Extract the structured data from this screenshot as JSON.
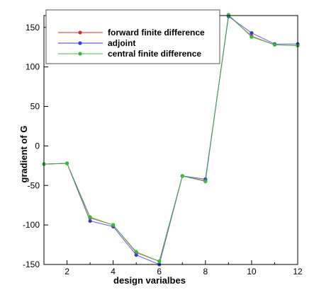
{
  "chart_data": {
    "type": "line",
    "title": "",
    "xlabel": "design varialbes",
    "ylabel": "gradient of G",
    "xlim": [
      1,
      12
    ],
    "ylim": [
      -150,
      165
    ],
    "xticks": [
      2,
      4,
      6,
      8,
      10,
      12
    ],
    "yticks": [
      -150,
      -100,
      -50,
      0,
      50,
      100,
      150
    ],
    "x": [
      1,
      2,
      3,
      4,
      5,
      6,
      7,
      8,
      9,
      10,
      11,
      12
    ],
    "legend_position": "top",
    "series": [
      {
        "name": "forward finite difference",
        "color": "#d03030",
        "values": [
          -23,
          -22,
          -91,
          -100,
          -135,
          -146,
          -38,
          -44,
          165,
          139,
          128,
          127
        ]
      },
      {
        "name": "adjoint",
        "color": "#3a3ad8",
        "values": [
          -23,
          -22,
          -95,
          -102,
          -138,
          -150,
          -38,
          -42,
          164,
          143,
          129,
          129
        ]
      },
      {
        "name": "central finite difference",
        "color": "#30c030",
        "values": [
          -23,
          -22,
          -90,
          -100,
          -134,
          -146,
          -38,
          -45,
          166,
          138,
          128,
          127
        ]
      }
    ]
  }
}
